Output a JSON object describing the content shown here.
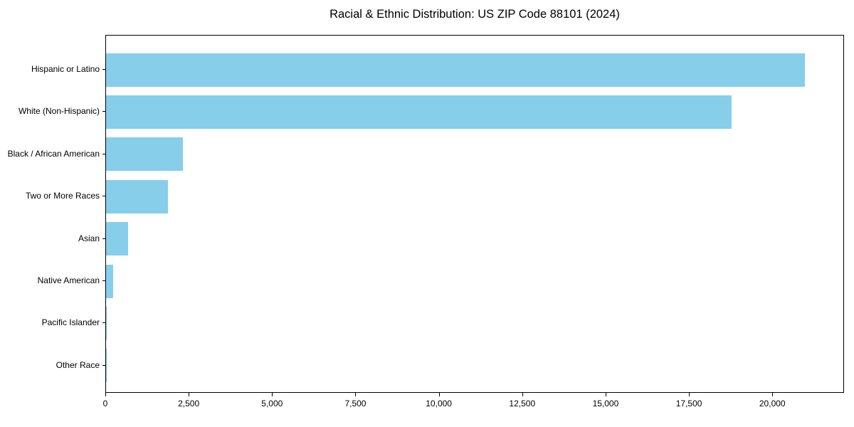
{
  "chart_data": {
    "type": "bar",
    "orientation": "horizontal",
    "title": "Racial & Ethnic Distribution: US ZIP Code 88101 (2024)",
    "categories": [
      "Hispanic or Latino",
      "White (Non-Hispanic)",
      "Black / African American",
      "Two or More Races",
      "Asian",
      "Native American",
      "Pacific Islander",
      "Other Race"
    ],
    "values": [
      21000,
      18800,
      2300,
      1850,
      670,
      210,
      30,
      20
    ],
    "xlabel": "",
    "ylabel": "",
    "xlim": [
      0,
      22150
    ],
    "xticks": [
      0,
      2500,
      5000,
      7500,
      10000,
      12500,
      15000,
      17500,
      20000
    ],
    "xtick_labels": [
      "0",
      "2,500",
      "5,000",
      "7,500",
      "10,000",
      "12,500",
      "15,000",
      "17,500",
      "20,000"
    ],
    "grid": false,
    "legend": null,
    "bar_color": "#87CEEB",
    "spine_color": "#000000",
    "text_color": "#000000",
    "background_color": "#ffffff"
  }
}
